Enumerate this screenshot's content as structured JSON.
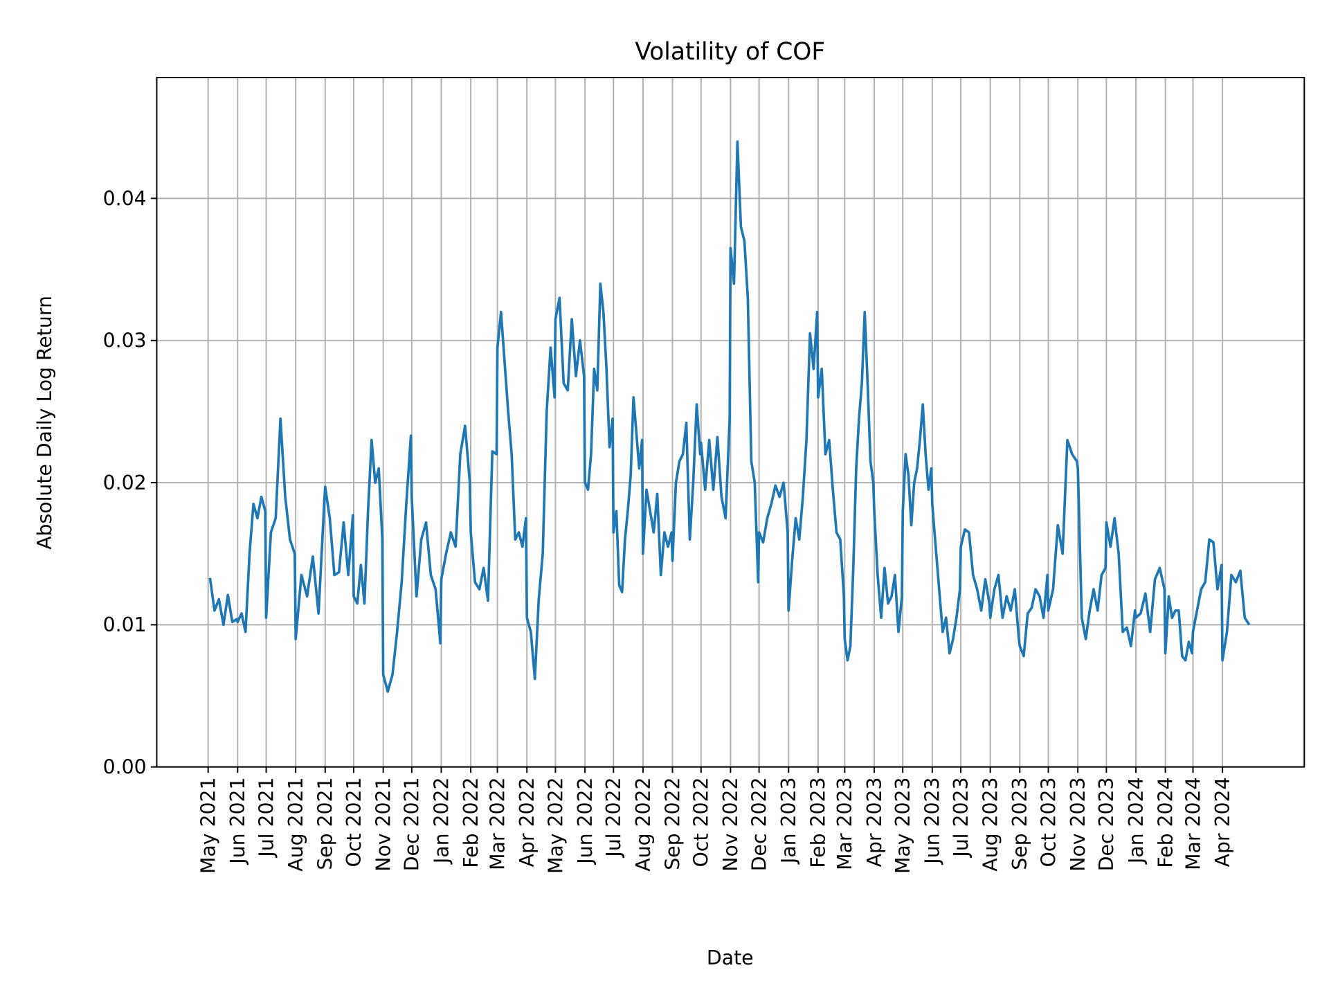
{
  "chart_data": {
    "type": "line",
    "title": "Volatility of COF",
    "xlabel": "Date",
    "ylabel": "Absolute Daily Log Return",
    "ylim": [
      0,
      0.0485
    ],
    "xlim": [
      "2021-03-08",
      "2024-06-26"
    ],
    "grid": true,
    "line_color": "#1f77b4",
    "yticks": [
      {
        "value": 0,
        "label": "0.00"
      },
      {
        "value": 0.01,
        "label": "0.01"
      },
      {
        "value": 0.02,
        "label": "0.02"
      },
      {
        "value": 0.03,
        "label": "0.03"
      },
      {
        "value": 0.04,
        "label": "0.04"
      }
    ],
    "xticks": [
      {
        "date": "2021-05-01",
        "label": "May 2021"
      },
      {
        "date": "2021-06-01",
        "label": "Jun 2021"
      },
      {
        "date": "2021-07-01",
        "label": "Jul 2021"
      },
      {
        "date": "2021-08-01",
        "label": "Aug 2021"
      },
      {
        "date": "2021-09-01",
        "label": "Sep 2021"
      },
      {
        "date": "2021-10-01",
        "label": "Oct 2021"
      },
      {
        "date": "2021-11-01",
        "label": "Nov 2021"
      },
      {
        "date": "2021-12-01",
        "label": "Dec 2021"
      },
      {
        "date": "2022-01-01",
        "label": "Jan 2022"
      },
      {
        "date": "2022-02-01",
        "label": "Feb 2022"
      },
      {
        "date": "2022-03-01",
        "label": "Mar 2022"
      },
      {
        "date": "2022-04-01",
        "label": "Apr 2022"
      },
      {
        "date": "2022-05-01",
        "label": "May 2022"
      },
      {
        "date": "2022-06-01",
        "label": "Jun 2022"
      },
      {
        "date": "2022-07-01",
        "label": "Jul 2022"
      },
      {
        "date": "2022-08-01",
        "label": "Aug 2022"
      },
      {
        "date": "2022-09-01",
        "label": "Sep 2022"
      },
      {
        "date": "2022-10-01",
        "label": "Oct 2022"
      },
      {
        "date": "2022-11-01",
        "label": "Nov 2022"
      },
      {
        "date": "2022-12-01",
        "label": "Dec 2022"
      },
      {
        "date": "2023-01-01",
        "label": "Jan 2023"
      },
      {
        "date": "2023-02-01",
        "label": "Feb 2023"
      },
      {
        "date": "2023-03-01",
        "label": "Mar 2023"
      },
      {
        "date": "2023-04-01",
        "label": "Apr 2023"
      },
      {
        "date": "2023-05-01",
        "label": "May 2023"
      },
      {
        "date": "2023-06-01",
        "label": "Jun 2023"
      },
      {
        "date": "2023-07-01",
        "label": "Jul 2023"
      },
      {
        "date": "2023-08-01",
        "label": "Aug 2023"
      },
      {
        "date": "2023-09-01",
        "label": "Sep 2023"
      },
      {
        "date": "2023-10-01",
        "label": "Oct 2023"
      },
      {
        "date": "2023-11-01",
        "label": "Nov 2023"
      },
      {
        "date": "2023-12-01",
        "label": "Dec 2023"
      },
      {
        "date": "2024-01-01",
        "label": "Jan 2024"
      },
      {
        "date": "2024-02-01",
        "label": "Feb 2024"
      },
      {
        "date": "2024-03-01",
        "label": "Mar 2024"
      },
      {
        "date": "2024-04-01",
        "label": "Apr 2024"
      }
    ],
    "series_by_month": [
      {
        "month": "2021-05",
        "values": [
          0.0133,
          0.011,
          0.0118,
          0.01,
          0.0121,
          0.0102,
          0.0104
        ]
      },
      {
        "month": "2021-06",
        "values": [
          0.0102,
          0.0108,
          0.0095,
          0.015,
          0.0185,
          0.0175,
          0.019,
          0.018
        ]
      },
      {
        "month": "2021-07",
        "values": [
          0.0105,
          0.0165,
          0.0175,
          0.0245,
          0.019,
          0.016,
          0.015
        ]
      },
      {
        "month": "2021-08",
        "values": [
          0.009,
          0.0135,
          0.012,
          0.0148,
          0.0108,
          0.0187
        ]
      },
      {
        "month": "2021-09",
        "values": [
          0.0197,
          0.0175,
          0.0135,
          0.0137,
          0.0172,
          0.0135,
          0.0177
        ]
      },
      {
        "month": "2021-10",
        "values": [
          0.012,
          0.0115,
          0.0142,
          0.0115,
          0.018,
          0.023,
          0.02,
          0.021,
          0.016
        ]
      },
      {
        "month": "2021-11",
        "values": [
          0.0065,
          0.0053,
          0.0065,
          0.0095,
          0.013,
          0.0185,
          0.0233
        ]
      },
      {
        "month": "2021-12",
        "values": [
          0.019,
          0.012,
          0.016,
          0.0172,
          0.0135,
          0.0125,
          0.0087
        ]
      },
      {
        "month": "2022-01",
        "values": [
          0.0132,
          0.015,
          0.0165,
          0.0155,
          0.022,
          0.024,
          0.02
        ]
      },
      {
        "month": "2022-02",
        "values": [
          0.0165,
          0.013,
          0.0125,
          0.014,
          0.0117,
          0.0222,
          0.022
        ]
      },
      {
        "month": "2022-03",
        "values": [
          0.0295,
          0.032,
          0.0285,
          0.025,
          0.022,
          0.016,
          0.0165,
          0.0155,
          0.0175
        ]
      },
      {
        "month": "2022-04",
        "values": [
          0.0105,
          0.0095,
          0.0062,
          0.0118,
          0.015,
          0.025,
          0.0295,
          0.026
        ]
      },
      {
        "month": "2022-05",
        "values": [
          0.0315,
          0.033,
          0.027,
          0.0265,
          0.0315,
          0.0275,
          0.03,
          0.0275
        ]
      },
      {
        "month": "2022-06",
        "values": [
          0.02,
          0.0195,
          0.022,
          0.028,
          0.0265,
          0.034,
          0.032,
          0.028,
          0.0225,
          0.0245
        ]
      },
      {
        "month": "2022-07",
        "values": [
          0.0165,
          0.018,
          0.0128,
          0.0123,
          0.016,
          0.018,
          0.0205,
          0.026,
          0.0235,
          0.021,
          0.023
        ]
      },
      {
        "month": "2022-08",
        "values": [
          0.015,
          0.0195,
          0.018,
          0.0165,
          0.0192,
          0.0135,
          0.0165,
          0.0155,
          0.0165
        ]
      },
      {
        "month": "2022-09",
        "values": [
          0.0145,
          0.02,
          0.0215,
          0.022,
          0.0242,
          0.016,
          0.02,
          0.0255,
          0.022
        ]
      },
      {
        "month": "2022-10",
        "values": [
          0.0228,
          0.0195,
          0.023,
          0.0195,
          0.0232,
          0.019,
          0.0175,
          0.0245
        ]
      },
      {
        "month": "2022-11",
        "values": [
          0.0365,
          0.034,
          0.044,
          0.038,
          0.037,
          0.033,
          0.0215,
          0.02,
          0.013
        ]
      },
      {
        "month": "2022-12",
        "values": [
          0.0165,
          0.0158,
          0.0175,
          0.0185,
          0.0198,
          0.019,
          0.02,
          0.0165
        ]
      },
      {
        "month": "2023-01",
        "values": [
          0.011,
          0.0145,
          0.0175,
          0.016,
          0.019,
          0.023,
          0.0305,
          0.028,
          0.032
        ]
      },
      {
        "month": "2023-02",
        "values": [
          0.026,
          0.028,
          0.022,
          0.023,
          0.0195,
          0.0165,
          0.016,
          0.012
        ]
      },
      {
        "month": "2023-03",
        "values": [
          0.009,
          0.0075,
          0.0085,
          0.014,
          0.021,
          0.0245,
          0.027,
          0.032,
          0.027,
          0.0215,
          0.02
        ]
      },
      {
        "month": "2023-04",
        "values": [
          0.018,
          0.0135,
          0.0105,
          0.014,
          0.0115,
          0.012,
          0.0135,
          0.0095,
          0.012
        ]
      },
      {
        "month": "2023-05",
        "values": [
          0.018,
          0.022,
          0.0205,
          0.017,
          0.02,
          0.021,
          0.023,
          0.0255,
          0.022,
          0.0195,
          0.021
        ]
      },
      {
        "month": "2023-06",
        "values": [
          0.0185,
          0.0155,
          0.0125,
          0.0095,
          0.0105,
          0.008,
          0.009,
          0.0105,
          0.0125
        ]
      },
      {
        "month": "2023-07",
        "values": [
          0.0155,
          0.0167,
          0.0165,
          0.0135,
          0.0125,
          0.011,
          0.0132,
          0.0115
        ]
      },
      {
        "month": "2023-08",
        "values": [
          0.0105,
          0.0125,
          0.0135,
          0.0105,
          0.012,
          0.011,
          0.0125,
          0.009
        ]
      },
      {
        "month": "2023-09",
        "values": [
          0.0085,
          0.0078,
          0.0108,
          0.0112,
          0.0125,
          0.012,
          0.0105,
          0.0135
        ]
      },
      {
        "month": "2023-10",
        "values": [
          0.011,
          0.0125,
          0.017,
          0.015,
          0.023,
          0.022,
          0.0215
        ]
      },
      {
        "month": "2023-11",
        "values": [
          0.021,
          0.0105,
          0.009,
          0.011,
          0.0125,
          0.011,
          0.0135,
          0.014
        ]
      },
      {
        "month": "2023-12",
        "values": [
          0.0172,
          0.0155,
          0.0175,
          0.015,
          0.0095,
          0.0098,
          0.0085,
          0.011
        ]
      },
      {
        "month": "2024-01",
        "values": [
          0.0105,
          0.0108,
          0.0122,
          0.0095,
          0.0132,
          0.014,
          0.0125
        ]
      },
      {
        "month": "2024-02",
        "values": [
          0.008,
          0.012,
          0.0105,
          0.011,
          0.011,
          0.0078,
          0.0075,
          0.0088,
          0.008
        ]
      },
      {
        "month": "2024-03",
        "values": [
          0.0095,
          0.011,
          0.0125,
          0.013,
          0.016,
          0.0158,
          0.0125,
          0.0142
        ]
      },
      {
        "month": "2024-04",
        "values": [
          0.0075,
          0.0095,
          0.0135,
          0.013,
          0.0138,
          0.0105,
          0.01
        ]
      }
    ]
  }
}
